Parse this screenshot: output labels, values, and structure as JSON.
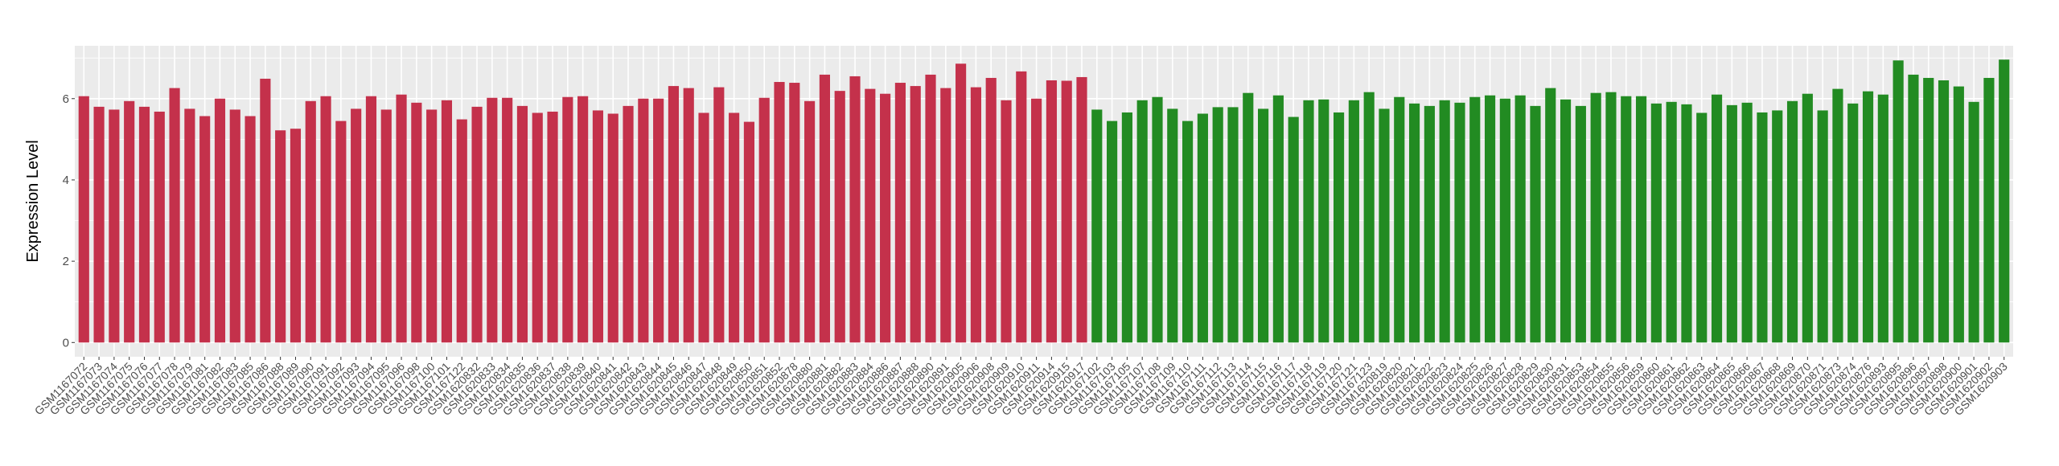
{
  "chart_data": {
    "type": "bar",
    "title": "",
    "xlabel": "",
    "ylabel": "Expression Level",
    "ylim": [
      -0.35,
      7.3
    ],
    "yticks": [
      0,
      2,
      4,
      6
    ],
    "grid": true,
    "legend": "none",
    "colors": {
      "group1": "#C4314B",
      "group2": "#228B22",
      "panel": "#EBEBEB",
      "grid": "#FFFFFF"
    },
    "series": [
      {
        "color": "#C4314B",
        "categories": [
          "GSM1167072",
          "GSM1167073",
          "GSM1167074",
          "GSM1167075",
          "GSM1167076",
          "GSM1167077",
          "GSM1167078",
          "GSM1167079",
          "GSM1167081",
          "GSM1167082",
          "GSM1167083",
          "GSM1167085",
          "GSM1167086",
          "GSM1167088",
          "GSM1167089",
          "GSM1167090",
          "GSM1167091",
          "GSM1167092",
          "GSM1167093",
          "GSM1167094",
          "GSM1167095",
          "GSM1167096",
          "GSM1167098",
          "GSM1167100",
          "GSM1167101",
          "GSM1167122",
          "GSM1620832",
          "GSM1620833",
          "GSM1620834",
          "GSM1620835",
          "GSM1620836",
          "GSM1620837",
          "GSM1620838",
          "GSM1620839",
          "GSM1620840",
          "GSM1620841",
          "GSM1620842",
          "GSM1620843",
          "GSM1620844",
          "GSM1620845",
          "GSM1620846",
          "GSM1620847",
          "GSM1620848",
          "GSM1620849",
          "GSM1620850",
          "GSM1620851",
          "GSM1620852",
          "GSM1620878",
          "GSM1620880",
          "GSM1620881",
          "GSM1620882",
          "GSM1620883",
          "GSM1620884",
          "GSM1620886",
          "GSM1620887",
          "GSM1620888",
          "GSM1620890",
          "GSM1620891",
          "GSM1620905",
          "GSM1620906",
          "GSM1620908",
          "GSM1620909",
          "GSM1620910",
          "GSM1620911",
          "GSM1620914",
          "GSM1620915",
          "GSM1620917"
        ],
        "values": [
          6.06,
          5.8,
          5.73,
          5.94,
          5.8,
          5.68,
          6.26,
          5.75,
          5.57,
          6.0,
          5.73,
          5.57,
          6.49,
          5.22,
          5.26,
          5.94,
          6.06,
          5.45,
          5.75,
          6.06,
          5.73,
          6.1,
          5.9,
          5.73,
          5.96,
          5.49,
          5.8,
          6.02,
          6.02,
          5.82,
          5.65,
          5.68,
          6.04,
          6.06,
          5.71,
          5.63,
          5.82,
          6.0,
          6.0,
          6.31,
          6.26,
          5.65,
          6.28,
          5.65,
          5.43,
          6.02,
          6.41,
          6.39,
          5.94,
          6.59,
          6.19,
          6.55,
          6.24,
          6.12,
          6.39,
          6.31,
          6.59,
          6.26,
          6.86,
          6.28,
          6.51,
          5.96,
          6.67,
          6.0,
          6.45,
          6.44,
          6.53
        ]
      },
      {
        "color": "#228B22",
        "categories": [
          "GSM1167102",
          "GSM1167103",
          "GSM1167105",
          "GSM1167107",
          "GSM1167108",
          "GSM1167109",
          "GSM1167110",
          "GSM1167111",
          "GSM1167112",
          "GSM1167113",
          "GSM1167114",
          "GSM1167115",
          "GSM1167116",
          "GSM1167117",
          "GSM1167118",
          "GSM1167119",
          "GSM1167120",
          "GSM1167121",
          "GSM1167123",
          "GSM1620819",
          "GSM1620820",
          "GSM1620821",
          "GSM1620822",
          "GSM1620823",
          "GSM1620824",
          "GSM1620825",
          "GSM1620826",
          "GSM1620827",
          "GSM1620828",
          "GSM1620829",
          "GSM1620830",
          "GSM1620831",
          "GSM1620853",
          "GSM1620854",
          "GSM1620855",
          "GSM1620856",
          "GSM1620859",
          "GSM1620860",
          "GSM1620861",
          "GSM1620862",
          "GSM1620863",
          "GSM1620864",
          "GSM1620865",
          "GSM1620866",
          "GSM1620867",
          "GSM1620868",
          "GSM1620869",
          "GSM1620870",
          "GSM1620871",
          "GSM1620873",
          "GSM1620874",
          "GSM1620876",
          "GSM1620893",
          "GSM1620895",
          "GSM1620896",
          "GSM1620897",
          "GSM1620898",
          "GSM1620900",
          "GSM1620901",
          "GSM1620902",
          "GSM1620903"
        ],
        "values": [
          5.73,
          5.45,
          5.66,
          5.96,
          6.04,
          5.75,
          5.45,
          5.63,
          5.79,
          5.79,
          6.14,
          5.75,
          6.08,
          5.55,
          5.96,
          5.98,
          5.66,
          5.96,
          6.16,
          5.75,
          6.04,
          5.88,
          5.82,
          5.96,
          5.9,
          6.04,
          6.08,
          6.0,
          6.08,
          5.82,
          6.26,
          5.98,
          5.82,
          6.14,
          6.16,
          6.06,
          6.06,
          5.88,
          5.92,
          5.86,
          5.65,
          6.1,
          5.84,
          5.9,
          5.66,
          5.71,
          5.94,
          6.12,
          5.71,
          6.24,
          5.88,
          6.18,
          6.1,
          6.94,
          6.59,
          6.51,
          6.45,
          6.3,
          5.92,
          6.51,
          6.96
        ]
      }
    ]
  }
}
